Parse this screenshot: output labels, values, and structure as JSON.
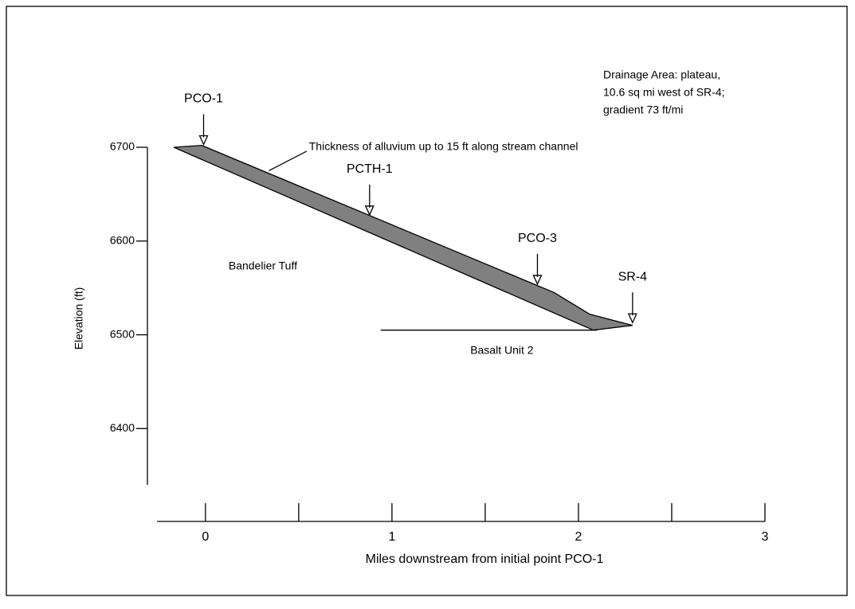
{
  "chart_data": {
    "type": "area",
    "xlabel": "Miles downstream from initial point PCO-1",
    "ylabel": "Elevation (ft)",
    "xlim": [
      -0.26,
      3
    ],
    "xticks": [
      0,
      1,
      2,
      3
    ],
    "xminorticks": [
      0.5,
      1.5,
      2.5
    ],
    "ylim": [
      6340,
      6700
    ],
    "yticks": [
      6400,
      6500,
      6600,
      6700
    ],
    "series": [
      {
        "color": "#808080",
        "x": [
          -0.17,
          -0.02,
          1.87,
          2.06,
          2.29
        ],
        "values": [
          6700,
          6702,
          6545,
          6522,
          6510
        ]
      },
      {
        "color": "#808080",
        "x": [
          -0.17,
          2.08,
          2.29
        ],
        "values": [
          6700,
          6505,
          6510
        ]
      },
      {
        "color": "#000000",
        "x": [
          0.94,
          2.1
        ],
        "values": [
          6505,
          6505
        ]
      }
    ],
    "wells": [
      {
        "text": "PCO-1",
        "x": -0.01,
        "y": 6703
      },
      {
        "text": "PCTH-1",
        "x": 0.88,
        "y": 6628
      },
      {
        "text": "PCO-3",
        "x": 1.78,
        "y": 6554
      },
      {
        "text": "SR-4",
        "x": 2.29,
        "y": 6513
      }
    ],
    "labels": [
      {
        "text": "Thickness of alluvium up to 15 ft along stream channel",
        "x": 0.555,
        "y": 6700,
        "pointer": [
          0.34,
          6675
        ]
      },
      {
        "text": "Bandelier Tuff",
        "x": 0.124,
        "y": 6573
      },
      {
        "text": "Basalt Unit 2",
        "x": 1.42,
        "y": 6483
      }
    ],
    "note": [
      "Drainage Area: plateau,",
      "10.6 sq mi west of SR-4;",
      "gradient 73 ft/mi"
    ]
  }
}
